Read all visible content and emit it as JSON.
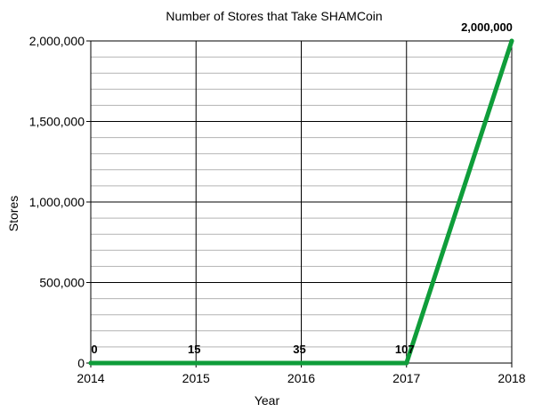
{
  "chart_data": {
    "type": "line",
    "title": "Number of Stores that Take SHAMCoin",
    "xlabel": "Year",
    "ylabel": "Stores",
    "x": [
      2014,
      2015,
      2016,
      2017,
      2018
    ],
    "x_tick_labels": [
      "2014",
      "2015",
      "2016",
      "2017",
      "2018"
    ],
    "series": [
      {
        "values": [
          0,
          15,
          35,
          107,
          2000000
        ],
        "data_labels": [
          "0",
          "15",
          "35",
          "107",
          "2,000,000"
        ]
      }
    ],
    "ylim": [
      0,
      2000000
    ],
    "y_ticks": [
      0,
      500000,
      1000000,
      1500000,
      2000000
    ],
    "y_tick_labels": [
      "0",
      "500,000",
      "1,000,000",
      "1,500,000",
      "2,000,000"
    ],
    "y_minor_step": 100000,
    "grid": true,
    "legend": "none",
    "colors": {
      "line": "#0f9d3a",
      "grid_major": "#000000",
      "grid_minor": "#b3b3b3"
    }
  }
}
